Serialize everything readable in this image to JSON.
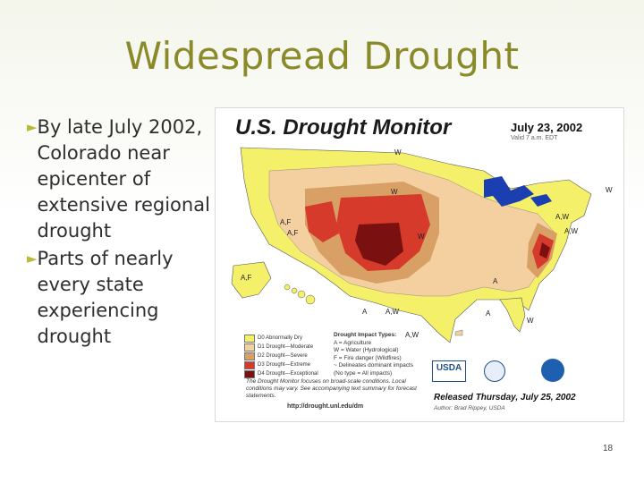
{
  "slide": {
    "title": "Widespread Drought",
    "bullets": [
      "By late July 2002, Colorado near epicenter of extensive regional drought",
      "Parts of nearly every state experiencing drought"
    ],
    "page_number": "18"
  },
  "map": {
    "title": "U.S. Drought Monitor",
    "date": "July 23, 2002",
    "valid": "Valid 7 a.m. EDT",
    "legend": [
      {
        "label": "D0 Abnormally Dry",
        "color": "#f5f06a"
      },
      {
        "label": "D1 Drought—Moderate",
        "color": "#f4cfa0"
      },
      {
        "label": "D2 Drought—Severe",
        "color": "#d9a066"
      },
      {
        "label": "D3 Drought—Extreme",
        "color": "#d63a2a"
      },
      {
        "label": "D4 Drought—Exceptional",
        "color": "#7a1010"
      }
    ],
    "impact_types": {
      "heading": "Drought Impact Types:",
      "items": [
        "A = Agriculture",
        "W = Water (Hydrological)",
        "F = Fire danger (Wildfires)",
        "~ Delineates dominant impacts",
        "(No type = All impacts)"
      ]
    },
    "note": "The Drought Monitor focuses on broad-scale conditions. Local conditions may vary. See accompanying text summary for forecast statements.",
    "url": "http://drought.unl.edu/dm",
    "released": "Released Thursday, July 25, 2002",
    "author": "Author: Brad Rippey, USDA",
    "logo_text": "USDA",
    "region_labels": [
      "W",
      "W",
      "W",
      "W",
      "A,F",
      "A,F",
      "A,F",
      "A",
      "A,W",
      "A,W",
      "A",
      "W",
      "A",
      "A,W",
      "A,W"
    ],
    "colors": {
      "d0": "#f5f06a",
      "d1": "#f4cfa0",
      "d2": "#d9a066",
      "d3": "#d63a2a",
      "d4": "#7a1010",
      "water": "#1b3fb0",
      "land": "#ffffff",
      "slide_title": "#8a8a2a",
      "bullet_arrow": "#b9b93a"
    }
  }
}
